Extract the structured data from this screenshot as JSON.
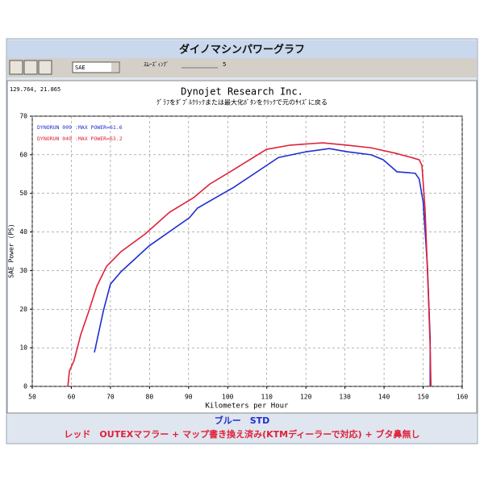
{
  "header": {
    "title": "ダイノマシンパワーグラフ"
  },
  "toolbar": {
    "correction": "SAE",
    "smoothing_label": "ｽﾑｰｽﾞｨﾝｸﾞ",
    "smoothing_value": "5"
  },
  "cursor": "129.764, 21.865",
  "chart_data": {
    "type": "line",
    "title": "Dynojet Research Inc.",
    "subtitle": "ｸﾞﾗﾌをﾀﾞﾌﾞﾙｸﾘｯｸまたは最大化ﾎﾞﾀﾝをｸﾘｯｸで元のｻｲｽﾞに戻る",
    "x_label": "Kilometers per Hour",
    "y_label": "SAE Power (PS)",
    "xlim": [
      50,
      160
    ],
    "xticks": [
      50,
      60,
      70,
      80,
      90,
      100,
      110,
      120,
      130,
      140,
      150,
      160
    ],
    "ylim": [
      0,
      70
    ],
    "yticks": [
      0,
      10,
      20,
      30,
      40,
      50,
      60,
      70
    ],
    "grid": true,
    "legend": "upper left",
    "series": [
      {
        "name": "DYNORUN 009 :MAX POWER=61.6",
        "color": "#1f2fd0",
        "x": [
          65.9,
          68.2,
          70,
          72.7,
          79.9,
          90.2,
          92.3,
          101.6,
          109.9,
          113,
          120.2,
          126,
          130.5,
          136.7,
          139.8,
          143.3,
          148,
          149,
          150,
          151.1,
          151.8,
          151.8
        ],
        "values": [
          8.8,
          19.6,
          26.5,
          29.7,
          36.4,
          43.7,
          46.2,
          51.6,
          57.2,
          59.3,
          60.8,
          61.6,
          60.8,
          60,
          58.7,
          55.6,
          55.2,
          53.7,
          47.8,
          31.1,
          12.3,
          0
        ]
      },
      {
        "name": "DYNORUN 049 :MAX POWER=63.2",
        "color": "#e0203a",
        "x": [
          59.1,
          59.5,
          60.7,
          62.4,
          64.5,
          66.5,
          69,
          72.7,
          78.9,
          85.1,
          91.3,
          95.4,
          101.6,
          109.9,
          116,
          124.3,
          130.5,
          136.7,
          142.9,
          147,
          149,
          149.7,
          150.5,
          151.3,
          151.8,
          152
        ],
        "values": [
          0,
          4,
          6.7,
          13.4,
          19.6,
          25.9,
          31.1,
          34.9,
          39.5,
          45.1,
          48.9,
          52.4,
          56.2,
          61.4,
          62.5,
          63.1,
          62.5,
          61.8,
          60.4,
          59.3,
          58.7,
          57.2,
          45.8,
          24.9,
          10.2,
          0
        ]
      }
    ]
  },
  "footer": {
    "blue_note": "ブルー　STD",
    "red_note": "レッド　OUTEXマフラー + マップ書き換え済み(KTMディーラーで対応) + ブタ鼻無し"
  }
}
